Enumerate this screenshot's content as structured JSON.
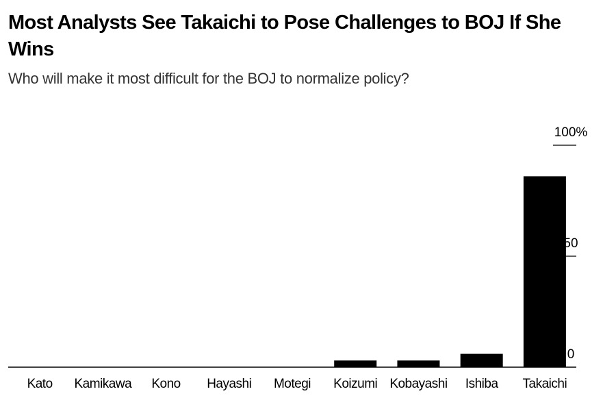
{
  "chart_data": {
    "type": "bar",
    "title": "Most Analysts See Takaichi to Pose Challenges to BOJ If She Wins",
    "subtitle": "Who will make it most difficult for the BOJ to normalize policy?",
    "categories": [
      "Kato",
      "Kamikawa",
      "Kono",
      "Hayashi",
      "Motegi",
      "Koizumi",
      "Kobayashi",
      "Ishiba",
      "Takaichi"
    ],
    "values": [
      0,
      0,
      0,
      0,
      0,
      3,
      3,
      6,
      86
    ],
    "ylim": [
      0,
      100
    ],
    "yticks": [
      0,
      50,
      100
    ],
    "ytick_labels": [
      "0",
      "50",
      "100%"
    ],
    "y_axis_side": "right",
    "grid": false,
    "bar_color": "#000000",
    "xlabel": "",
    "ylabel": ""
  }
}
